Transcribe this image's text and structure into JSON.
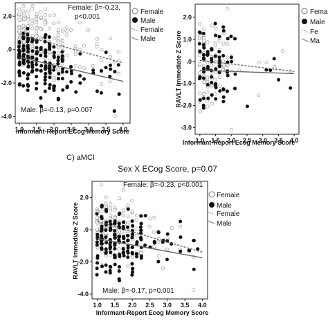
{
  "chart_data": [
    {
      "type": "scatter",
      "panel": "left",
      "title": "",
      "xlabel": "Informant-Report ECog Memory Score",
      "ylabel": "",
      "x_ticks": [
        "1.0",
        "1.5",
        "2.0",
        "2.5",
        "3.0",
        "3.5",
        "4.0"
      ],
      "y_ticks": [
        "2.0",
        ".0",
        "-2.0",
        "-4.0"
      ],
      "xlim": [
        0.88,
        4.2
      ],
      "ylim": [
        -4.4,
        2.8
      ],
      "legend": {
        "placement": "top-right",
        "entries": [
          "Female",
          "Male",
          "Female",
          "Male"
        ]
      },
      "annotations": {
        "female": "Female: β=-0.23,",
        "female_p": "p<0.001",
        "male": "Male: β=-0.13, p=0.007"
      },
      "series": [
        {
          "name": "Female",
          "marker": "open-circle",
          "fit": {
            "x": [
              1.0,
              4.0
            ],
            "y": [
              0.9,
              -0.8
            ]
          }
        },
        {
          "name": "Male",
          "marker": "filled-circle",
          "fit": {
            "x": [
              1.0,
              4.0
            ],
            "y": [
              -0.45,
              -1.9
            ]
          }
        }
      ]
    },
    {
      "type": "scatter",
      "panel": "right",
      "title": "",
      "xlabel": "Informant-Report Ecog Memory Score",
      "ylabel": "RAVLT Immediate Z Score",
      "x_ticks": [
        "1.0",
        "1.5",
        "2.0",
        "2.5",
        "3.0",
        "3.5",
        "4.0"
      ],
      "y_ticks": [
        "2.0",
        "1.0",
        ".0",
        "-1.0",
        "-2.0",
        "-3.0"
      ],
      "xlim": [
        0.85,
        4.15
      ],
      "ylim": [
        -3.3,
        2.6
      ],
      "legend": {
        "placement": "top-right",
        "entries": [
          "Female",
          "Male",
          "Fe",
          "Ma"
        ]
      },
      "annotations": {},
      "series": [
        {
          "name": "Female",
          "marker": "open-circle",
          "fit": {
            "x": [
              1.0,
              4.0
            ],
            "y": [
              0.05,
              -0.45
            ]
          }
        },
        {
          "name": "Male",
          "marker": "filled-circle",
          "fit": {
            "x": [
              1.0,
              4.0
            ],
            "y": [
              -0.4,
              -0.55
            ]
          }
        }
      ]
    },
    {
      "type": "scatter",
      "panel": "C",
      "panel_label": "C) aMCI",
      "title": "Sex X ECog Score, p=0.07",
      "xlabel": "Informant-Report Ecog Memory Score",
      "ylabel": "RAVLT Immediate Z Score",
      "x_ticks": [
        "1.0",
        "1.5",
        "2.0",
        "2.5",
        "3.0",
        "3.5",
        "4.0"
      ],
      "y_ticks": [
        "2.0",
        ".0",
        "-2.0",
        "-4.0"
      ],
      "xlim": [
        0.85,
        4.15
      ],
      "ylim": [
        -4.3,
        3.0
      ],
      "legend": {
        "placement": "top-right",
        "entries": [
          "Female",
          "Male",
          "Female",
          "Male"
        ]
      },
      "annotations": {
        "female": "Female: β=-0.23, p<0.001",
        "male": "Male: β=-0.17, p=0.001"
      },
      "series": [
        {
          "name": "Female",
          "marker": "open-circle",
          "fit": {
            "x": [
              1.0,
              4.0
            ],
            "y": [
              0.5,
              -1.4
            ]
          }
        },
        {
          "name": "Male",
          "marker": "filled-circle",
          "fit": {
            "x": [
              1.0,
              4.0
            ],
            "y": [
              -0.55,
              -1.75
            ]
          }
        }
      ]
    }
  ],
  "colors": {
    "female_marker": "#9a9a9a",
    "male_marker": "#111111",
    "fit_line": "#666666",
    "axis": "#222222"
  }
}
